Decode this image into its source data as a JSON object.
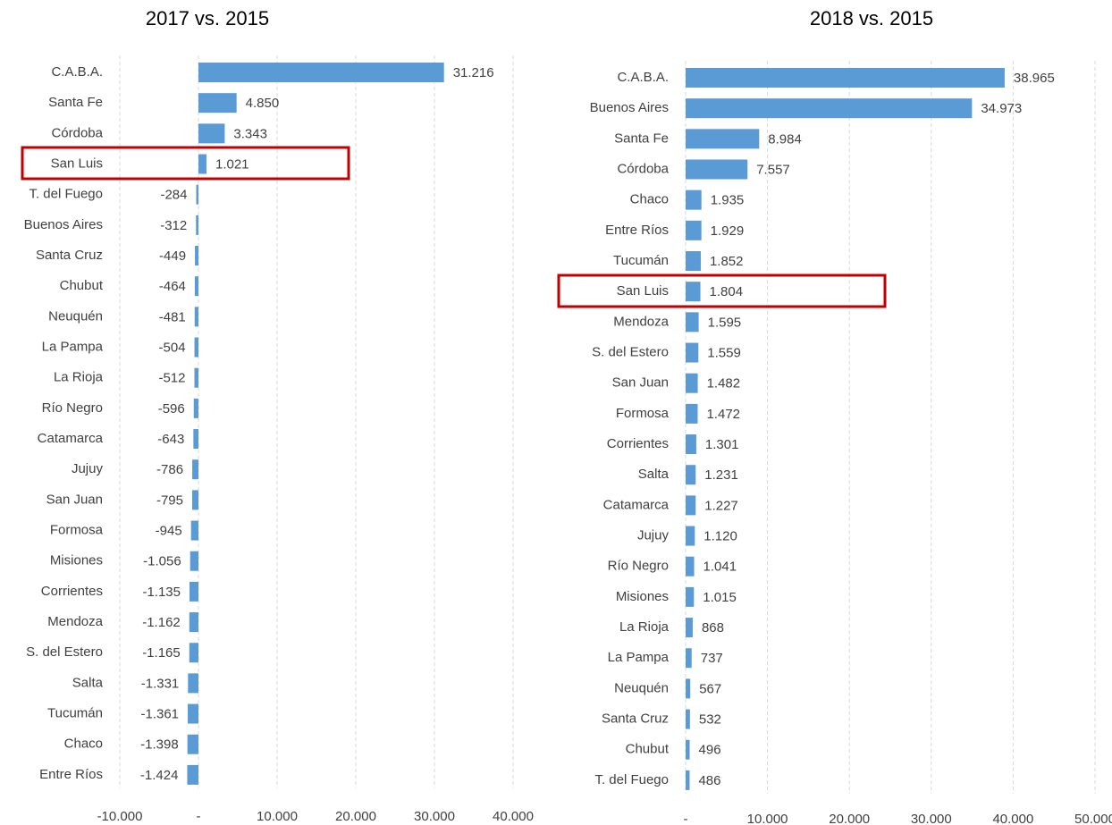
{
  "chart_data": [
    {
      "type": "bar",
      "orientation": "horizontal",
      "title": "2017 vs. 2015",
      "categories": [
        "C.A.B.A.",
        "Santa Fe",
        "Córdoba",
        "San Luis",
        "T. del Fuego",
        "Buenos Aires",
        "Santa Cruz",
        "Chubut",
        "Neuquén",
        "La Pampa",
        "La Rioja",
        "Río Negro",
        "Catamarca",
        "Jujuy",
        "San Juan",
        "Formosa",
        "Misiones",
        "Corrientes",
        "Mendoza",
        "S. del Estero",
        "Salta",
        "Tucumán",
        "Chaco",
        "Entre Ríos"
      ],
      "values": [
        31216,
        4850,
        3343,
        1021,
        -284,
        -312,
        -449,
        -464,
        -481,
        -504,
        -512,
        -596,
        -643,
        -786,
        -795,
        -945,
        -1056,
        -1135,
        -1162,
        -1165,
        -1331,
        -1361,
        -1398,
        -1424
      ],
      "value_labels": [
        "31.216",
        "4.850",
        "3.343",
        "1.021",
        "-284",
        "-312",
        "-449",
        "-464",
        "-481",
        "-504",
        "-512",
        "-596",
        "-643",
        "-786",
        "-795",
        "-945",
        "-1.056",
        "-1.135",
        "-1.162",
        "-1.165",
        "-1.331",
        "-1.361",
        "-1.398",
        "-1.424"
      ],
      "color": "#5b9bd5",
      "xlim": [
        -10000,
        40000
      ],
      "xticks": [
        {
          "value": -10000,
          "label": "-10.000"
        },
        {
          "value": 0,
          "label": "-"
        },
        {
          "value": 10000,
          "label": "10.000"
        },
        {
          "value": 20000,
          "label": "20.000"
        },
        {
          "value": 30000,
          "label": "30.000"
        },
        {
          "value": 40000,
          "label": "40.000"
        }
      ],
      "grid": true
    },
    {
      "type": "bar",
      "orientation": "horizontal",
      "title": "2018 vs. 2015",
      "categories": [
        "C.A.B.A.",
        "Buenos Aires",
        "Santa Fe",
        "Córdoba",
        "Chaco",
        "Entre Ríos",
        "Tucumán",
        "San Luis",
        "Mendoza",
        "S. del Estero",
        "San Juan",
        "Formosa",
        "Corrientes",
        "Salta",
        "Catamarca",
        "Jujuy",
        "Río Negro",
        "Misiones",
        "La Rioja",
        "La Pampa",
        "Neuquén",
        "Santa Cruz",
        "Chubut",
        "T. del Fuego"
      ],
      "values": [
        38965,
        34973,
        8984,
        7557,
        1935,
        1929,
        1852,
        1804,
        1595,
        1559,
        1482,
        1472,
        1301,
        1231,
        1227,
        1120,
        1041,
        1015,
        868,
        737,
        567,
        532,
        496,
        486
      ],
      "value_labels": [
        "38.965",
        "34.973",
        "8.984",
        "7.557",
        "1.935",
        "1.929",
        "1.852",
        "1.804",
        "1.595",
        "1.559",
        "1.482",
        "1.472",
        "1.301",
        "1.231",
        "1.227",
        "1.120",
        "1.041",
        "1.015",
        "868",
        "737",
        "567",
        "532",
        "496",
        "486"
      ],
      "color": "#5b9bd5",
      "xlim": [
        0,
        50000
      ],
      "xticks": [
        {
          "value": 0,
          "label": "-"
        },
        {
          "value": 10000,
          "label": "10.000"
        },
        {
          "value": 20000,
          "label": "20.000"
        },
        {
          "value": 30000,
          "label": "30.000"
        },
        {
          "value": 40000,
          "label": "40.000"
        },
        {
          "value": 50000,
          "label": "50.000"
        }
      ],
      "grid": true
    }
  ]
}
